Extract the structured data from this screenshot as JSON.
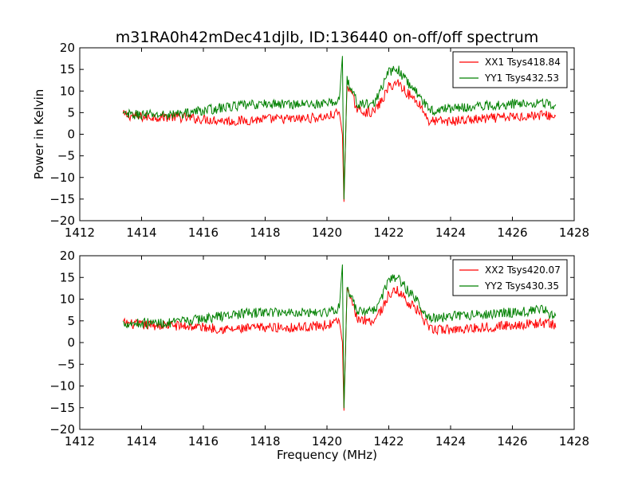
{
  "figure": {
    "title": "m31RA0h42mDec41djlb, ID:136440 on-off/off spectrum"
  },
  "chart_data": [
    {
      "type": "line",
      "ylabel": "Power in Kelvin",
      "xlabel": "",
      "xlim": [
        1412,
        1428
      ],
      "ylim": [
        -20,
        20
      ],
      "xticks": [
        "1412",
        "1414",
        "1416",
        "1418",
        "1420",
        "1422",
        "1424",
        "1426",
        "1428"
      ],
      "yticks": [
        "20",
        "15",
        "10",
        "5",
        "0",
        "−5",
        "−10",
        "−15",
        "−20"
      ],
      "grid": false,
      "legend_position": "top-right",
      "series": [
        {
          "name": "XX1 Tsys418.84",
          "color": "#ff0000",
          "x": [
            1413.4,
            1414.0,
            1415.0,
            1416.0,
            1417.0,
            1418.0,
            1419.0,
            1420.0,
            1420.4,
            1420.5,
            1420.55,
            1420.65,
            1420.8,
            1421.0,
            1421.5,
            1421.8,
            1422.0,
            1422.3,
            1422.6,
            1423.0,
            1423.3,
            1424.0,
            1425.0,
            1426.0,
            1427.0,
            1427.4
          ],
          "y": [
            4.5,
            4,
            4,
            3.5,
            3,
            3.5,
            3.5,
            4,
            5,
            0,
            -15.5,
            12,
            9,
            5.5,
            5,
            8,
            11,
            12,
            9.5,
            7,
            3,
            3,
            3.5,
            4,
            4.5,
            4
          ]
        },
        {
          "name": "YY1 Tsys432.53",
          "color": "#008000",
          "x": [
            1413.4,
            1414.0,
            1415.0,
            1416.0,
            1417.0,
            1418.0,
            1419.0,
            1420.0,
            1420.4,
            1420.5,
            1420.55,
            1420.65,
            1420.8,
            1421.0,
            1421.5,
            1421.8,
            1422.0,
            1422.3,
            1422.6,
            1423.0,
            1423.3,
            1424.0,
            1425.0,
            1426.0,
            1427.0,
            1427.4
          ],
          "y": [
            4.5,
            4.5,
            4.5,
            5.5,
            6.5,
            7,
            7,
            7,
            8,
            18,
            -15,
            12.5,
            10,
            7,
            7,
            11,
            14.5,
            15,
            12,
            9,
            5.5,
            6,
            6.5,
            7,
            7.5,
            6
          ]
        }
      ]
    },
    {
      "type": "line",
      "ylabel": "",
      "xlabel": "Frequency (MHz)",
      "xlim": [
        1412,
        1428
      ],
      "ylim": [
        -20,
        20
      ],
      "xticks": [
        "1412",
        "1414",
        "1416",
        "1418",
        "1420",
        "1422",
        "1424",
        "1426",
        "1428"
      ],
      "yticks": [
        "20",
        "15",
        "10",
        "5",
        "0",
        "−5",
        "−10",
        "−15",
        "−20"
      ],
      "grid": false,
      "legend_position": "top-right",
      "series": [
        {
          "name": "XX2 Tsys420.07",
          "color": "#ff0000",
          "x": [
            1413.4,
            1414.0,
            1415.0,
            1416.0,
            1417.0,
            1418.0,
            1419.0,
            1420.0,
            1420.4,
            1420.5,
            1420.55,
            1420.65,
            1420.8,
            1421.0,
            1421.5,
            1421.8,
            1422.0,
            1422.3,
            1422.6,
            1423.0,
            1423.3,
            1424.0,
            1425.0,
            1426.0,
            1427.0,
            1427.4
          ],
          "y": [
            4.5,
            4,
            4,
            3.5,
            3,
            3.5,
            3.5,
            4,
            5,
            0,
            -15.5,
            12,
            9,
            5.5,
            5,
            8,
            11,
            12,
            9.5,
            7,
            3,
            3,
            3.5,
            4,
            4.5,
            4
          ]
        },
        {
          "name": "YY2 Tsys430.35",
          "color": "#008000",
          "x": [
            1413.4,
            1414.0,
            1415.0,
            1416.0,
            1417.0,
            1418.0,
            1419.0,
            1420.0,
            1420.4,
            1420.5,
            1420.55,
            1420.65,
            1420.8,
            1421.0,
            1421.5,
            1421.8,
            1422.0,
            1422.3,
            1422.6,
            1423.0,
            1423.3,
            1424.0,
            1425.0,
            1426.0,
            1427.0,
            1427.4
          ],
          "y": [
            4.5,
            4.5,
            4.5,
            5.5,
            6.5,
            7,
            7,
            7,
            8,
            18,
            -15,
            12.5,
            10,
            7,
            7,
            11,
            14.5,
            15,
            12,
            9,
            5.5,
            6,
            6.5,
            7,
            7.5,
            6
          ]
        }
      ]
    }
  ]
}
